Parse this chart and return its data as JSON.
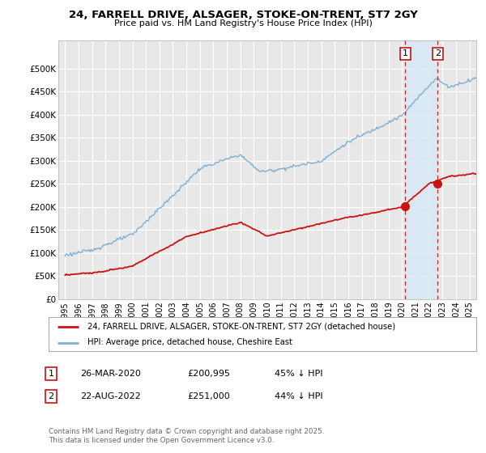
{
  "title": "24, FARRELL DRIVE, ALSAGER, STOKE-ON-TRENT, ST7 2GY",
  "subtitle": "Price paid vs. HM Land Registry's House Price Index (HPI)",
  "ylabel_ticks": [
    "£0",
    "£50K",
    "£100K",
    "£150K",
    "£200K",
    "£250K",
    "£300K",
    "£350K",
    "£400K",
    "£450K",
    "£500K"
  ],
  "ytick_values": [
    0,
    50000,
    100000,
    150000,
    200000,
    250000,
    300000,
    350000,
    400000,
    450000,
    500000
  ],
  "ylim": [
    0,
    560000
  ],
  "xlim_start": 1994.5,
  "xlim_end": 2025.5,
  "hpi_color": "#7bafd4",
  "hpi_fill_color": "#d6e8f5",
  "price_color": "#cc1111",
  "dashed_line_color": "#cc1111",
  "sale1_x": 2020.23,
  "sale1_y": 200995,
  "sale2_x": 2022.64,
  "sale2_y": 251000,
  "sale1_label": "1",
  "sale2_label": "2",
  "legend_line1": "24, FARRELL DRIVE, ALSAGER, STOKE-ON-TRENT, ST7 2GY (detached house)",
  "legend_line2": "HPI: Average price, detached house, Cheshire East",
  "table_row1": [
    "1",
    "26-MAR-2020",
    "£200,995",
    "45% ↓ HPI"
  ],
  "table_row2": [
    "2",
    "22-AUG-2022",
    "£251,000",
    "44% ↓ HPI"
  ],
  "footnote": "Contains HM Land Registry data © Crown copyright and database right 2025.\nThis data is licensed under the Open Government Licence v3.0.",
  "bg_color": "#ffffff",
  "plot_bg_color": "#e8e8e8",
  "grid_color": "#ffffff"
}
